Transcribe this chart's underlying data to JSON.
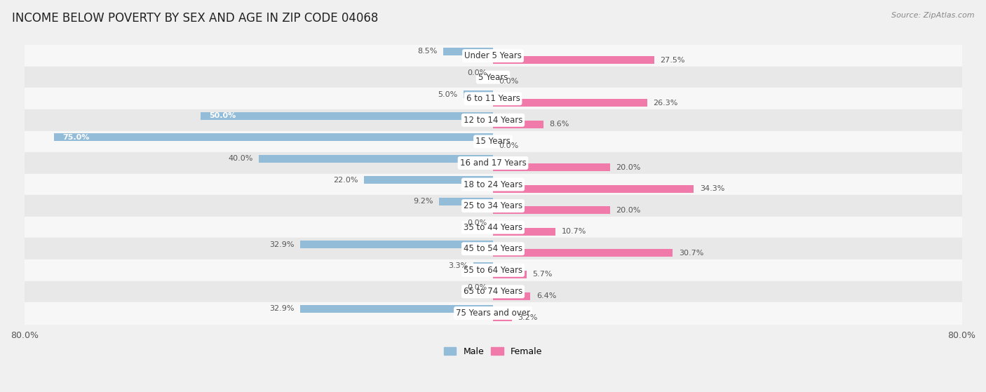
{
  "title": "INCOME BELOW POVERTY BY SEX AND AGE IN ZIP CODE 04068",
  "source": "Source: ZipAtlas.com",
  "categories": [
    "Under 5 Years",
    "5 Years",
    "6 to 11 Years",
    "12 to 14 Years",
    "15 Years",
    "16 and 17 Years",
    "18 to 24 Years",
    "25 to 34 Years",
    "35 to 44 Years",
    "45 to 54 Years",
    "55 to 64 Years",
    "65 to 74 Years",
    "75 Years and over"
  ],
  "male": [
    8.5,
    0.0,
    5.0,
    50.0,
    75.0,
    40.0,
    22.0,
    9.2,
    0.0,
    32.9,
    3.3,
    0.0,
    32.9
  ],
  "female": [
    27.5,
    0.0,
    26.3,
    8.6,
    0.0,
    20.0,
    34.3,
    20.0,
    10.7,
    30.7,
    5.7,
    6.4,
    3.2
  ],
  "male_color": "#92bcd8",
  "female_color": "#f07aaa",
  "female_color_light": "#f9b8d0",
  "bg_color": "#f0f0f0",
  "row_bg_light": "#f7f7f7",
  "row_bg_dark": "#e8e8e8",
  "axis_max": 80.0,
  "title_fontsize": 12,
  "bar_label_fontsize": 8,
  "cat_label_fontsize": 8.5,
  "source_fontsize": 8
}
